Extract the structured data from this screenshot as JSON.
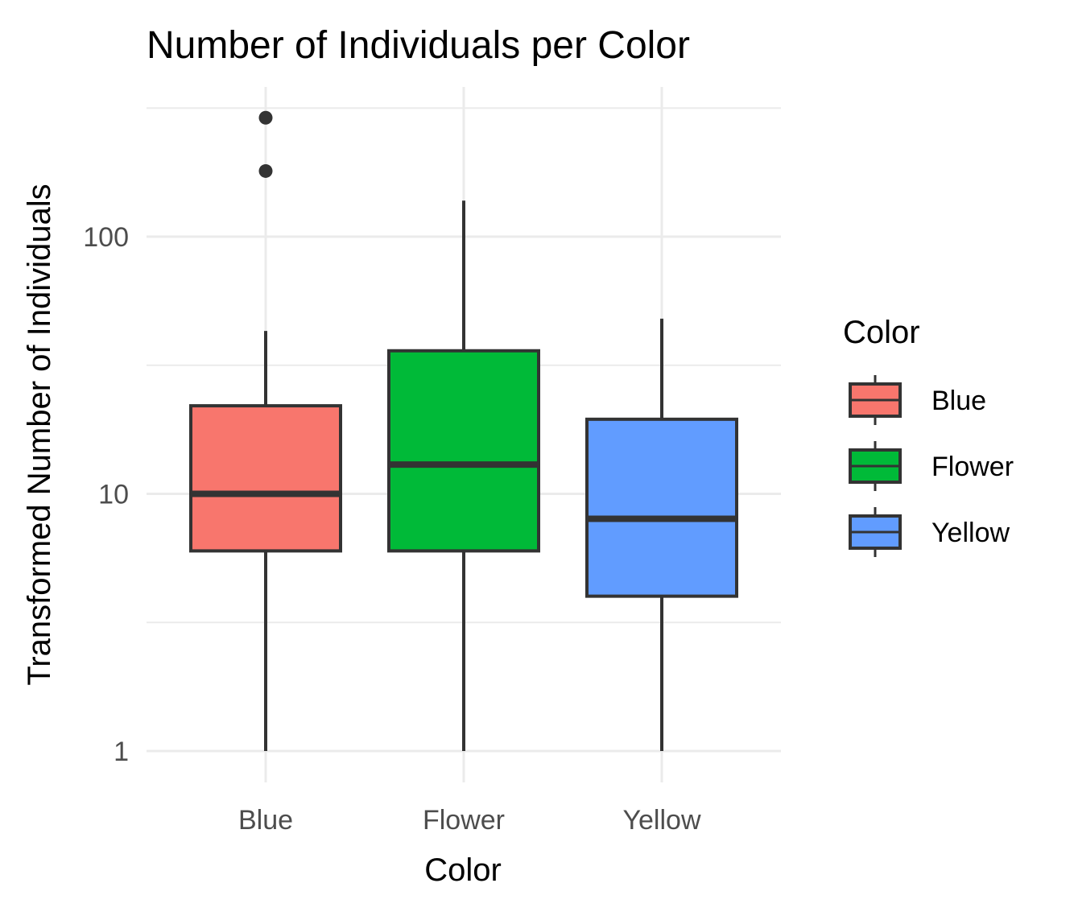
{
  "chart_data": {
    "type": "boxplot",
    "title": "Number of Individuals per Color",
    "xlabel": "Color",
    "ylabel": "Transformed Number of Individuals",
    "y_scale": "log10",
    "ylim": [
      1,
      330
    ],
    "y_ticks": [
      1,
      10,
      100
    ],
    "y_tick_labels": [
      "1",
      "10",
      "100"
    ],
    "categories": [
      "Blue",
      "Flower",
      "Yellow"
    ],
    "boxes": [
      {
        "category": "Blue",
        "min": 1,
        "q1": 6,
        "median": 10,
        "q3": 22,
        "max": 43,
        "outliers": [
          180,
          290
        ],
        "fill": "#F8766D"
      },
      {
        "category": "Flower",
        "min": 1,
        "q1": 6,
        "median": 13,
        "q3": 36,
        "max": 138,
        "outliers": [],
        "fill": "#00BA38"
      },
      {
        "category": "Yellow",
        "min": 1,
        "q1": 4,
        "median": 8,
        "q3": 19.5,
        "max": 48,
        "outliers": [],
        "fill": "#619CFF"
      }
    ],
    "grid": true,
    "legend": {
      "title": "Color",
      "position": "right",
      "entries": [
        {
          "label": "Blue",
          "color": "#F8766D"
        },
        {
          "label": "Flower",
          "color": "#00BA38"
        },
        {
          "label": "Yellow",
          "color": "#619CFF"
        }
      ]
    },
    "colors": {
      "outline": "#333333",
      "grid": "#ebebeb",
      "tick_text": "#4d4d4d"
    }
  }
}
